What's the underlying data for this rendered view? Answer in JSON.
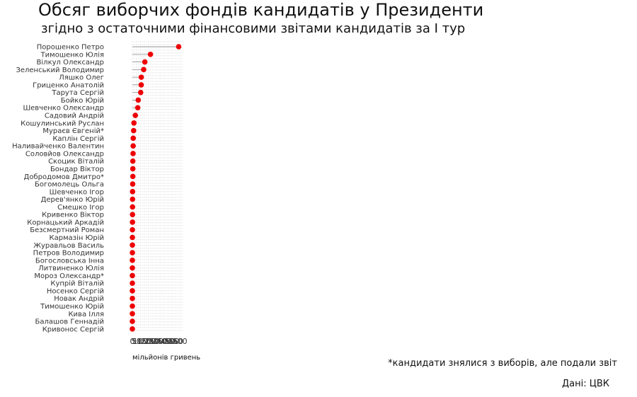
{
  "title": "Обсяг виборчих фондів кандидатів у Президенти",
  "subtitle": "згідно з остаточними фінансовими звітами кандидатів за І тур",
  "note": "*кандидати знялися з виборів, але подали звіт",
  "source": "Дані: ЦВК",
  "colors": {
    "point": "#ee0000",
    "segment": "#999999",
    "grid": "#d9d9d9",
    "text": "#333333"
  },
  "chart_data": {
    "type": "lollipop",
    "xlabel": "мільйонів гривень",
    "xlim": [
      0,
      625
    ],
    "xticks": [
      0,
      50,
      100,
      150,
      200,
      250,
      300,
      350,
      400,
      450,
      500,
      550,
      600
    ],
    "grid": "vertical dotted",
    "categories": [
      "Порошенко Петро",
      "Тимошенко Юлія",
      "Вілкул Олександр",
      "Зеленський Володимир",
      "Ляшко Олег",
      "Гриценко Анатолій",
      "Тарута Сергій",
      "Бойко Юрій",
      "Шевченко Олександр",
      "Садовий Андрій",
      "Кошулинський Руслан",
      "Мураєв Євгеній*",
      "Каплін Сергій",
      "Наливайченко Валентин",
      "Соловйов Олександр",
      "Скоцик Віталій",
      "Бондар Віктор",
      "Добродомов Дмитро*",
      "Богомолець Ольга",
      "Шевченко Ігор",
      "Дерев'янко Юрій",
      "Смешко Ігор",
      "Кривенко Віктор",
      "Корнацький Аркадій",
      "Безсмертний Роман",
      "Кармазін Юрій",
      "Журавльов Василь",
      "Петров Володимир",
      "Богословська Інна",
      "Литвиненко Юлія",
      "Мороз Олександр*",
      "Купрій Віталій",
      "Носенко Сергій",
      "Новак Андрій",
      "Тимошенко Юрій",
      "Кива Ілля",
      "Балашов Геннадій",
      "Кривонос Сергій"
    ],
    "values": [
      585,
      229,
      158,
      143,
      113,
      112,
      105,
      74,
      68,
      38,
      20,
      16,
      11,
      10,
      9,
      6,
      6,
      6,
      4,
      2.5,
      2.5,
      2.3,
      2,
      1.8,
      1,
      0.8,
      0.6,
      0.6,
      0.5,
      0.4,
      0.4,
      0.3,
      0.3,
      0.3,
      0.3,
      0.2,
      0.2,
      0.1
    ]
  }
}
